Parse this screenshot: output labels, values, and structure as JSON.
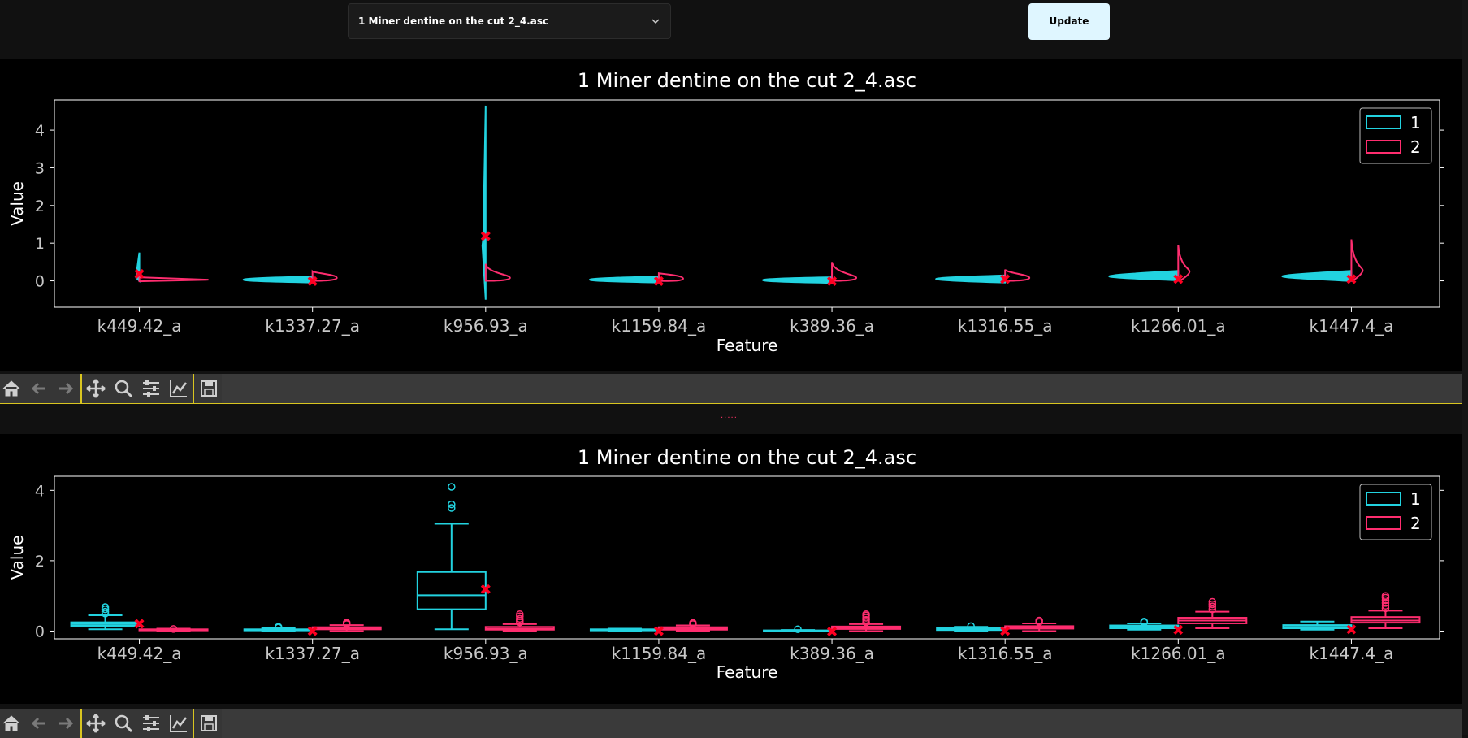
{
  "header": {
    "select_value": "1 Miner dentine on the cut 2_4.asc",
    "update_label": "Update"
  },
  "divider_text": ".....",
  "toolbar_icons": [
    "home-icon",
    "back-icon",
    "forward-icon",
    "pan-icon",
    "zoom-icon",
    "configure-subplots-icon",
    "edit-axis-icon",
    "save-icon"
  ],
  "colors": {
    "series1": "#22d3e0",
    "series2": "#ff2d6f",
    "mean_marker": "#ff0022",
    "background": "#000000",
    "toolbar_separator": "#d9c520"
  },
  "chart_data": [
    {
      "type": "violin",
      "title": "1 Miner dentine on the cut 2_4.asc",
      "xlabel": "Feature",
      "ylabel": "Value",
      "ylim": [
        -0.7,
        4.8
      ],
      "yticks": [
        0,
        1,
        2,
        3,
        4
      ],
      "legend_position": "top-right",
      "categories": [
        "k449.42_a",
        "k1337.27_a",
        "k956.93_a",
        "k1159.84_a",
        "k389.36_a",
        "k1316.55_a",
        "k1266.01_a",
        "k1447.4_a"
      ],
      "series": [
        {
          "name": "1",
          "color": "#22d3e0",
          "min": [
            0.0,
            0.02,
            -0.5,
            0.02,
            0.01,
            0.02,
            0.08,
            0.06
          ],
          "max": [
            0.75,
            0.05,
            4.65,
            0.05,
            0.03,
            0.08,
            0.2,
            0.2
          ],
          "mode": [
            0.15,
            0.03,
            1.0,
            0.03,
            0.02,
            0.05,
            0.12,
            0.12
          ]
        },
        {
          "name": "2",
          "color": "#ff2d6f",
          "min": [
            0.0,
            0.0,
            0.0,
            0.0,
            0.0,
            0.0,
            0.0,
            0.0
          ],
          "max": [
            0.06,
            0.25,
            0.45,
            0.2,
            0.5,
            0.3,
            0.95,
            1.1
          ],
          "mode": [
            0.03,
            0.08,
            0.08,
            0.06,
            0.08,
            0.08,
            0.25,
            0.28
          ]
        }
      ],
      "mean_markers": [
        0.2,
        0.0,
        1.2,
        0.0,
        0.0,
        0.05,
        0.05,
        0.05
      ]
    },
    {
      "type": "box",
      "title": "1 Miner dentine on the cut 2_4.asc",
      "xlabel": "Feature",
      "ylabel": "Value",
      "ylim": [
        -0.22,
        4.4
      ],
      "yticks": [
        0,
        2,
        4
      ],
      "legend_position": "top-right",
      "categories": [
        "k449.42_a",
        "k1337.27_a",
        "k956.93_a",
        "k1159.84_a",
        "k389.36_a",
        "k1316.55_a",
        "k1266.01_a",
        "k1447.4_a"
      ],
      "series": [
        {
          "name": "1",
          "color": "#22d3e0",
          "boxes": [
            {
              "min": 0.05,
              "q1": 0.15,
              "median": 0.2,
              "q3": 0.25,
              "max": 0.45,
              "outliers": [
                0.5,
                0.55,
                0.62,
                0.68
              ]
            },
            {
              "min": 0.01,
              "q1": 0.02,
              "median": 0.03,
              "q3": 0.05,
              "max": 0.08,
              "outliers": [
                0.1,
                0.12
              ]
            },
            {
              "min": 0.05,
              "q1": 0.62,
              "median": 1.02,
              "q3": 1.68,
              "max": 3.05,
              "outliers": [
                3.5,
                3.6,
                4.1
              ]
            },
            {
              "min": 0.01,
              "q1": 0.02,
              "median": 0.03,
              "q3": 0.05,
              "max": 0.07,
              "outliers": []
            },
            {
              "min": 0.0,
              "q1": 0.01,
              "median": 0.01,
              "q3": 0.02,
              "max": 0.03,
              "outliers": [
                0.05
              ]
            },
            {
              "min": 0.01,
              "q1": 0.03,
              "median": 0.05,
              "q3": 0.08,
              "max": 0.12,
              "outliers": [
                0.14
              ]
            },
            {
              "min": 0.04,
              "q1": 0.08,
              "median": 0.12,
              "q3": 0.16,
              "max": 0.22,
              "outliers": [
                0.25,
                0.27
              ]
            },
            {
              "min": 0.04,
              "q1": 0.08,
              "median": 0.12,
              "q3": 0.17,
              "max": 0.27,
              "outliers": []
            }
          ]
        },
        {
          "name": "2",
          "color": "#ff2d6f",
          "boxes": [
            {
              "min": 0.0,
              "q1": 0.02,
              "median": 0.03,
              "q3": 0.05,
              "max": 0.07,
              "outliers": [
                0.06
              ]
            },
            {
              "min": 0.0,
              "q1": 0.05,
              "median": 0.08,
              "q3": 0.11,
              "max": 0.17,
              "outliers": [
                0.2,
                0.22,
                0.24
              ]
            },
            {
              "min": 0.0,
              "q1": 0.04,
              "median": 0.07,
              "q3": 0.12,
              "max": 0.2,
              "outliers": [
                0.25,
                0.3,
                0.35,
                0.42,
                0.48
              ]
            },
            {
              "min": 0.0,
              "q1": 0.04,
              "median": 0.07,
              "q3": 0.11,
              "max": 0.16,
              "outliers": [
                0.2,
                0.23
              ]
            },
            {
              "min": 0.0,
              "q1": 0.06,
              "median": 0.09,
              "q3": 0.13,
              "max": 0.2,
              "outliers": [
                0.25,
                0.32,
                0.38,
                0.44,
                0.48
              ]
            },
            {
              "min": 0.0,
              "q1": 0.07,
              "median": 0.1,
              "q3": 0.14,
              "max": 0.22,
              "outliers": [
                0.26,
                0.3
              ]
            },
            {
              "min": 0.08,
              "q1": 0.22,
              "median": 0.3,
              "q3": 0.38,
              "max": 0.55,
              "outliers": [
                0.62,
                0.7,
                0.76,
                0.83
              ]
            },
            {
              "min": 0.08,
              "q1": 0.24,
              "median": 0.3,
              "q3": 0.4,
              "max": 0.58,
              "outliers": [
                0.65,
                0.72,
                0.8,
                0.88,
                0.95,
                1.0
              ]
            }
          ]
        }
      ],
      "mean_markers": [
        0.22,
        0.01,
        1.2,
        0.01,
        0.0,
        0.01,
        0.05,
        0.06
      ]
    }
  ]
}
